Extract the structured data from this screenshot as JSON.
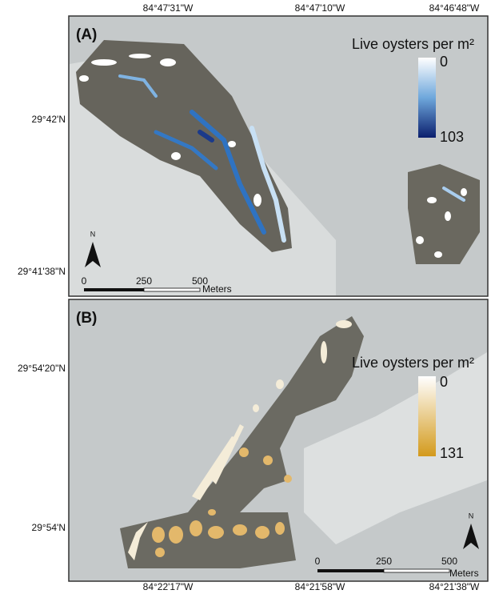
{
  "panels": [
    {
      "label": "(A)",
      "legend": {
        "title": "Live oysters per m²",
        "min": 0,
        "max": 103
      },
      "scale": {
        "ticks": [
          0,
          250,
          500
        ],
        "unit": "Meters"
      },
      "north": "N",
      "top_labels": [
        "84°47'31\"W",
        "84°47'10\"W",
        "84°46'48\"W"
      ],
      "left_labels": [
        "29°42'N",
        "29°41'38\"N"
      ]
    },
    {
      "label": "(B)",
      "legend": {
        "title": "Live oysters per m²",
        "min": 0,
        "max": 131
      },
      "scale": {
        "ticks": [
          0,
          250,
          500
        ],
        "unit": "Meters"
      },
      "north": "N",
      "left_labels": [
        "29°54'20\"N",
        "29°54'N"
      ],
      "bottom_labels": [
        "84°22'17\"W",
        "84°21'58\"W",
        "84°21'38\"W"
      ]
    }
  ]
}
